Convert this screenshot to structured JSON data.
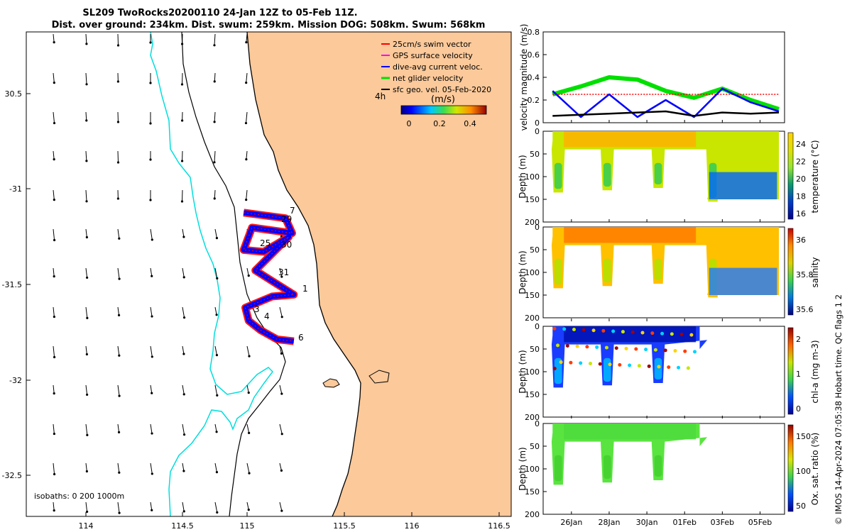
{
  "title": {
    "line1": "SL209 TwoRocks20200110 24-Jan 12Z to 05-Feb 11Z.",
    "line2": "Dist. over ground: 234km. Dist. swum: 259km. Mission DOG: 508km. Swum: 568km"
  },
  "map": {
    "x_ticks": [
      "114",
      "114.5",
      "115",
      "115.5",
      "116",
      "116.5"
    ],
    "y_ticks": [
      "30.5",
      "-31",
      "-31.5",
      "-32",
      "-32.5"
    ],
    "legend": [
      {
        "label": "25cm/s swim vector",
        "color": "#ff0000"
      },
      {
        "label": "GPS surface velocity",
        "color": "#ff00ff"
      },
      {
        "label": "dive-avg current veloc.",
        "color": "#0000ff"
      },
      {
        "label": "net glider velocity",
        "color": "#00e000"
      },
      {
        "label": "sfc geo. vel. 05-Feb-2020",
        "color": "#000000"
      }
    ],
    "colorbar": {
      "prefix": "4h",
      "unit": "(m/s)",
      "ticks": [
        "0",
        "0.2",
        "0.4"
      ]
    },
    "isobath_text": "isobaths: 0   200  1000m",
    "track_labels": [
      "7",
      "29",
      "25",
      "30",
      "31",
      "1",
      "3",
      "4",
      "6"
    ]
  },
  "velocity_panel": {
    "ylabel": "velocity magnitude (m/s)",
    "yticks": [
      "0",
      "0.2",
      "0.4",
      "0.6",
      "0.8"
    ]
  },
  "sections": [
    {
      "key": "temperature",
      "cbar_label": "temperature (°C)",
      "cbar_ticks": [
        "24",
        "22",
        "20",
        "18",
        "16"
      ]
    },
    {
      "key": "salinity",
      "cbar_label": "salinity",
      "cbar_ticks": [
        "36",
        "35.8",
        "35.6"
      ]
    },
    {
      "key": "chla",
      "cbar_label": "chl-a (mg m-3)",
      "cbar_ticks": [
        "2",
        "1",
        "0"
      ]
    },
    {
      "key": "oxygen",
      "cbar_label": "Ox. sat. ratio (%)",
      "cbar_ticks": [
        "150",
        "100",
        "50"
      ]
    }
  ],
  "depth_axis": {
    "label": "Depth (m)",
    "ticks": [
      "0",
      "50",
      "100",
      "150",
      "200"
    ]
  },
  "time_axis": {
    "ticks": [
      "26Jan",
      "28Jan",
      "30Jan",
      "01Feb",
      "03Feb",
      "05Feb"
    ]
  },
  "credit": "© IMOS 14-Apr-2024 07:05:38 Hobart time. QC flags 1  2",
  "chart_data": {
    "type": "multi-panel",
    "map": {
      "type": "map",
      "xlim": [
        113.65,
        116.55
      ],
      "ylim": [
        -32.7,
        -30.1
      ],
      "track": [
        [
          114.95,
          -31.07
        ],
        [
          115.2,
          -31.1
        ],
        [
          115.24,
          -31.18
        ],
        [
          115.0,
          -31.15
        ],
        [
          114.95,
          -31.27
        ],
        [
          115.07,
          -31.28
        ],
        [
          115.22,
          -31.2
        ],
        [
          115.02,
          -31.38
        ],
        [
          115.25,
          -31.51
        ],
        [
          115.12,
          -31.52
        ],
        [
          114.96,
          -31.58
        ],
        [
          114.98,
          -31.65
        ],
        [
          115.05,
          -31.7
        ],
        [
          115.15,
          -31.75
        ],
        [
          115.25,
          -31.76
        ]
      ]
    },
    "velocity": {
      "type": "line",
      "x": [
        25.0,
        26.5,
        28.0,
        29.5,
        31.0,
        32.5,
        34.0,
        35.5,
        37.0
      ],
      "ylim": [
        0,
        0.8
      ],
      "series": [
        {
          "name": "25cm/s swim vector",
          "values": [
            0.25,
            0.25,
            0.25,
            0.25,
            0.25,
            0.25,
            0.25,
            0.25,
            0.25
          ]
        },
        {
          "name": "dive-avg current veloc.",
          "values": [
            0.28,
            0.05,
            0.25,
            0.05,
            0.2,
            0.05,
            0.3,
            0.18,
            0.1
          ]
        },
        {
          "name": "net glider velocity",
          "values": [
            0.25,
            0.32,
            0.4,
            0.38,
            0.28,
            0.22,
            0.3,
            0.2,
            0.12
          ]
        },
        {
          "name": "sfc geo. vel. 05-Feb-2020",
          "values": [
            0.06,
            0.07,
            0.08,
            0.09,
            0.1,
            0.06,
            0.09,
            0.08,
            0.09
          ]
        }
      ]
    },
    "time_axis_days": [
      26,
      28,
      30,
      32,
      34,
      36
    ],
    "depth_range": [
      0,
      200
    ]
  }
}
